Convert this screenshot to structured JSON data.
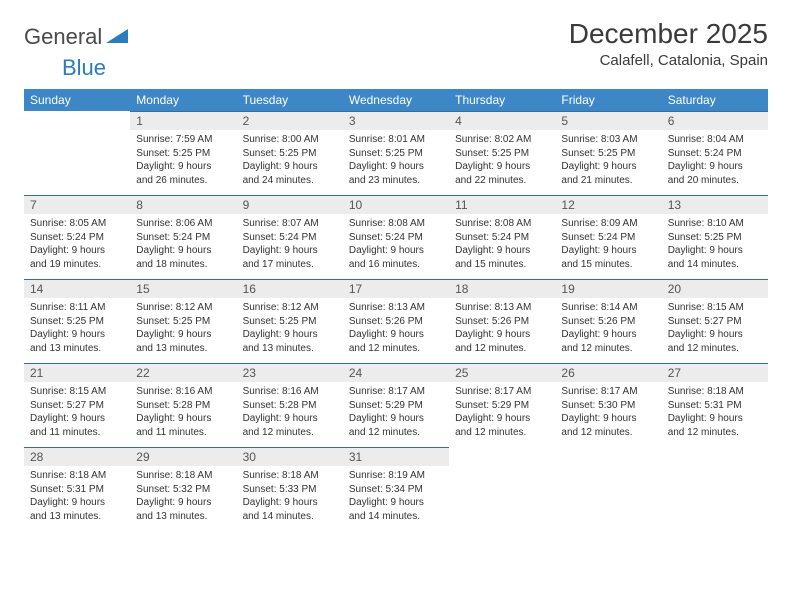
{
  "brand": {
    "part1": "General",
    "part2": "Blue"
  },
  "title": "December 2025",
  "location": "Calafell, Catalonia, Spain",
  "weekdays": [
    "Sunday",
    "Monday",
    "Tuesday",
    "Wednesday",
    "Thursday",
    "Friday",
    "Saturday"
  ],
  "style": {
    "header_bg": "#3d87c7",
    "header_text": "#ffffff",
    "daynum_bg": "#ececec",
    "daynum_border": "#2f6fa8",
    "body_text": "#333333",
    "title_color": "#3a3a3a",
    "logo_gray": "#4a4a4a",
    "logo_blue": "#2b7bbf",
    "font_family": "Arial, Helvetica, sans-serif",
    "month_title_size_pt": 21,
    "location_size_pt": 11,
    "weekday_size_pt": 9,
    "daynum_size_pt": 9,
    "info_size_pt": 7.5
  },
  "weeks": [
    [
      {
        "day": "",
        "sunrise": "",
        "sunset": "",
        "daylight": "",
        "blank": true
      },
      {
        "day": "1",
        "sunrise": "Sunrise: 7:59 AM",
        "sunset": "Sunset: 5:25 PM",
        "daylight": "Daylight: 9 hours and 26 minutes."
      },
      {
        "day": "2",
        "sunrise": "Sunrise: 8:00 AM",
        "sunset": "Sunset: 5:25 PM",
        "daylight": "Daylight: 9 hours and 24 minutes."
      },
      {
        "day": "3",
        "sunrise": "Sunrise: 8:01 AM",
        "sunset": "Sunset: 5:25 PM",
        "daylight": "Daylight: 9 hours and 23 minutes."
      },
      {
        "day": "4",
        "sunrise": "Sunrise: 8:02 AM",
        "sunset": "Sunset: 5:25 PM",
        "daylight": "Daylight: 9 hours and 22 minutes."
      },
      {
        "day": "5",
        "sunrise": "Sunrise: 8:03 AM",
        "sunset": "Sunset: 5:25 PM",
        "daylight": "Daylight: 9 hours and 21 minutes."
      },
      {
        "day": "6",
        "sunrise": "Sunrise: 8:04 AM",
        "sunset": "Sunset: 5:24 PM",
        "daylight": "Daylight: 9 hours and 20 minutes."
      }
    ],
    [
      {
        "day": "7",
        "sunrise": "Sunrise: 8:05 AM",
        "sunset": "Sunset: 5:24 PM",
        "daylight": "Daylight: 9 hours and 19 minutes."
      },
      {
        "day": "8",
        "sunrise": "Sunrise: 8:06 AM",
        "sunset": "Sunset: 5:24 PM",
        "daylight": "Daylight: 9 hours and 18 minutes."
      },
      {
        "day": "9",
        "sunrise": "Sunrise: 8:07 AM",
        "sunset": "Sunset: 5:24 PM",
        "daylight": "Daylight: 9 hours and 17 minutes."
      },
      {
        "day": "10",
        "sunrise": "Sunrise: 8:08 AM",
        "sunset": "Sunset: 5:24 PM",
        "daylight": "Daylight: 9 hours and 16 minutes."
      },
      {
        "day": "11",
        "sunrise": "Sunrise: 8:08 AM",
        "sunset": "Sunset: 5:24 PM",
        "daylight": "Daylight: 9 hours and 15 minutes."
      },
      {
        "day": "12",
        "sunrise": "Sunrise: 8:09 AM",
        "sunset": "Sunset: 5:24 PM",
        "daylight": "Daylight: 9 hours and 15 minutes."
      },
      {
        "day": "13",
        "sunrise": "Sunrise: 8:10 AM",
        "sunset": "Sunset: 5:25 PM",
        "daylight": "Daylight: 9 hours and 14 minutes."
      }
    ],
    [
      {
        "day": "14",
        "sunrise": "Sunrise: 8:11 AM",
        "sunset": "Sunset: 5:25 PM",
        "daylight": "Daylight: 9 hours and 13 minutes."
      },
      {
        "day": "15",
        "sunrise": "Sunrise: 8:12 AM",
        "sunset": "Sunset: 5:25 PM",
        "daylight": "Daylight: 9 hours and 13 minutes."
      },
      {
        "day": "16",
        "sunrise": "Sunrise: 8:12 AM",
        "sunset": "Sunset: 5:25 PM",
        "daylight": "Daylight: 9 hours and 13 minutes."
      },
      {
        "day": "17",
        "sunrise": "Sunrise: 8:13 AM",
        "sunset": "Sunset: 5:26 PM",
        "daylight": "Daylight: 9 hours and 12 minutes."
      },
      {
        "day": "18",
        "sunrise": "Sunrise: 8:13 AM",
        "sunset": "Sunset: 5:26 PM",
        "daylight": "Daylight: 9 hours and 12 minutes."
      },
      {
        "day": "19",
        "sunrise": "Sunrise: 8:14 AM",
        "sunset": "Sunset: 5:26 PM",
        "daylight": "Daylight: 9 hours and 12 minutes."
      },
      {
        "day": "20",
        "sunrise": "Sunrise: 8:15 AM",
        "sunset": "Sunset: 5:27 PM",
        "daylight": "Daylight: 9 hours and 12 minutes."
      }
    ],
    [
      {
        "day": "21",
        "sunrise": "Sunrise: 8:15 AM",
        "sunset": "Sunset: 5:27 PM",
        "daylight": "Daylight: 9 hours and 11 minutes."
      },
      {
        "day": "22",
        "sunrise": "Sunrise: 8:16 AM",
        "sunset": "Sunset: 5:28 PM",
        "daylight": "Daylight: 9 hours and 11 minutes."
      },
      {
        "day": "23",
        "sunrise": "Sunrise: 8:16 AM",
        "sunset": "Sunset: 5:28 PM",
        "daylight": "Daylight: 9 hours and 12 minutes."
      },
      {
        "day": "24",
        "sunrise": "Sunrise: 8:17 AM",
        "sunset": "Sunset: 5:29 PM",
        "daylight": "Daylight: 9 hours and 12 minutes."
      },
      {
        "day": "25",
        "sunrise": "Sunrise: 8:17 AM",
        "sunset": "Sunset: 5:29 PM",
        "daylight": "Daylight: 9 hours and 12 minutes."
      },
      {
        "day": "26",
        "sunrise": "Sunrise: 8:17 AM",
        "sunset": "Sunset: 5:30 PM",
        "daylight": "Daylight: 9 hours and 12 minutes."
      },
      {
        "day": "27",
        "sunrise": "Sunrise: 8:18 AM",
        "sunset": "Sunset: 5:31 PM",
        "daylight": "Daylight: 9 hours and 12 minutes."
      }
    ],
    [
      {
        "day": "28",
        "sunrise": "Sunrise: 8:18 AM",
        "sunset": "Sunset: 5:31 PM",
        "daylight": "Daylight: 9 hours and 13 minutes."
      },
      {
        "day": "29",
        "sunrise": "Sunrise: 8:18 AM",
        "sunset": "Sunset: 5:32 PM",
        "daylight": "Daylight: 9 hours and 13 minutes."
      },
      {
        "day": "30",
        "sunrise": "Sunrise: 8:18 AM",
        "sunset": "Sunset: 5:33 PM",
        "daylight": "Daylight: 9 hours and 14 minutes."
      },
      {
        "day": "31",
        "sunrise": "Sunrise: 8:19 AM",
        "sunset": "Sunset: 5:34 PM",
        "daylight": "Daylight: 9 hours and 14 minutes."
      },
      {
        "day": "",
        "sunrise": "",
        "sunset": "",
        "daylight": "",
        "blank": true
      },
      {
        "day": "",
        "sunrise": "",
        "sunset": "",
        "daylight": "",
        "blank": true
      },
      {
        "day": "",
        "sunrise": "",
        "sunset": "",
        "daylight": "",
        "blank": true
      }
    ]
  ]
}
